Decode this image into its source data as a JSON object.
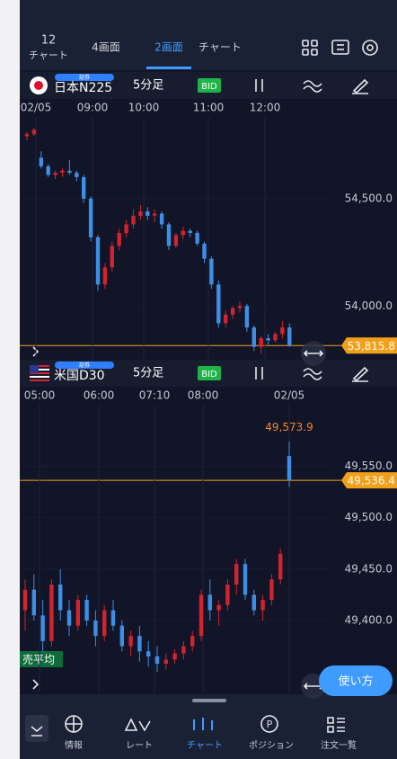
{
  "top_tabs": {
    "left_number": "12",
    "left_label": "チャート",
    "tabs": [
      "4画面",
      "2画面",
      "チャート"
    ]
  },
  "charts": [
    {
      "badge": "証券",
      "symbol": "日本N225",
      "timeframe": "5分足",
      "price_type": "BID",
      "time_labels": [
        "02/05",
        "09:00",
        "10:00",
        "11:00",
        "12:00"
      ],
      "ylim": [
        53750,
        54880
      ],
      "price_ticks": [
        {
          "value": 54500,
          "label": "54,500.0"
        },
        {
          "value": 54000,
          "label": "54,000.0"
        }
      ],
      "current_price": {
        "value": 53815.8,
        "label": "53,815.8"
      },
      "candles": [
        [
          54790,
          54810,
          54770,
          54800
        ],
        [
          54800,
          54830,
          54790,
          54820
        ],
        [
          54690,
          54720,
          54640,
          54650
        ],
        [
          54650,
          54660,
          54600,
          54610
        ],
        [
          54610,
          54630,
          54590,
          54620
        ],
        [
          54620,
          54640,
          54600,
          54630
        ],
        [
          54630,
          54680,
          54610,
          54620
        ],
        [
          54620,
          54630,
          54580,
          54600
        ],
        [
          54600,
          54610,
          54480,
          54500
        ],
        [
          54500,
          54510,
          54300,
          54320
        ],
        [
          54320,
          54330,
          54070,
          54100
        ],
        [
          54100,
          54200,
          54080,
          54180
        ],
        [
          54180,
          54300,
          54160,
          54280
        ],
        [
          54280,
          54360,
          54260,
          54340
        ],
        [
          54340,
          54400,
          54320,
          54380
        ],
        [
          54380,
          54450,
          54360,
          54420
        ],
        [
          54420,
          54470,
          54400,
          54440
        ],
        [
          54440,
          54460,
          54400,
          54420
        ],
        [
          54420,
          54450,
          54390,
          54430
        ],
        [
          54430,
          54440,
          54360,
          54380
        ],
        [
          54380,
          54390,
          54260,
          54280
        ],
        [
          54280,
          54340,
          54270,
          54330
        ],
        [
          54330,
          54370,
          54310,
          54350
        ],
        [
          54350,
          54360,
          54320,
          54340
        ],
        [
          54340,
          54350,
          54280,
          54290
        ],
        [
          54290,
          54300,
          54200,
          54220
        ],
        [
          54220,
          54230,
          54080,
          54100
        ],
        [
          54100,
          54120,
          53900,
          53920
        ],
        [
          53920,
          53980,
          53900,
          53960
        ],
        [
          53960,
          54000,
          53940,
          53990
        ],
        [
          53990,
          54020,
          53970,
          54000
        ],
        [
          54000,
          54010,
          53880,
          53900
        ],
        [
          53900,
          53910,
          53790,
          53810
        ],
        [
          53810,
          53860,
          53780,
          53850
        ],
        [
          53850,
          53870,
          53820,
          53840
        ],
        [
          53840,
          53880,
          53830,
          53870
        ],
        [
          53870,
          53930,
          53850,
          53900
        ],
        [
          53900,
          53920,
          53810,
          53815.8
        ]
      ]
    },
    {
      "badge": "証券",
      "symbol": "米国D30",
      "timeframe": "5分足",
      "price_type": "BID",
      "time_labels": [
        "05:00",
        "06:00",
        "07:10",
        "08:00",
        "02/05"
      ],
      "ylim": [
        49330,
        49610
      ],
      "price_ticks": [
        {
          "value": 49550,
          "label": "49,550.0"
        },
        {
          "value": 49500,
          "label": "49,500.0"
        },
        {
          "value": 49450,
          "label": "49,450.0"
        },
        {
          "value": 49400,
          "label": "49,400.0"
        }
      ],
      "current_price": {
        "value": 49536.4,
        "label": "49,536.4"
      },
      "high_annotation": {
        "value": 49573.9,
        "label": "49,573.9"
      },
      "candles": [
        [
          49410,
          49440,
          49390,
          49430
        ],
        [
          49430,
          49445,
          49400,
          49405
        ],
        [
          49405,
          49420,
          49370,
          49380
        ],
        [
          49380,
          49440,
          49375,
          49435
        ],
        [
          49435,
          49450,
          49400,
          49410
        ],
        [
          49410,
          49420,
          49385,
          49395
        ],
        [
          49395,
          49425,
          49390,
          49420
        ],
        [
          49420,
          49425,
          49395,
          49400
        ],
        [
          49400,
          49410,
          49375,
          49385
        ],
        [
          49385,
          49415,
          49380,
          49410
        ],
        [
          49410,
          49420,
          49390,
          49395
        ],
        [
          49395,
          49400,
          49370,
          49375
        ],
        [
          49375,
          49390,
          49365,
          49385
        ],
        [
          49385,
          49395,
          49360,
          49370
        ],
        [
          49370,
          49380,
          49355,
          49365
        ],
        [
          49365,
          49375,
          49350,
          49358
        ],
        [
          49358,
          49368,
          49352,
          49362
        ],
        [
          49362,
          49372,
          49358,
          49368
        ],
        [
          49368,
          49380,
          49362,
          49375
        ],
        [
          49375,
          49390,
          49370,
          49385
        ],
        [
          49385,
          49430,
          49380,
          49425
        ],
        [
          49425,
          49440,
          49400,
          49410
        ],
        [
          49410,
          49420,
          49395,
          49415
        ],
        [
          49415,
          49440,
          49410,
          49435
        ],
        [
          49435,
          49460,
          49425,
          49455
        ],
        [
          49455,
          49460,
          49420,
          49425
        ],
        [
          49425,
          49430,
          49405,
          49410
        ],
        [
          49410,
          49425,
          49400,
          49420
        ],
        [
          49420,
          49445,
          49415,
          49440
        ],
        [
          49440,
          49470,
          49435,
          49465
        ],
        [
          49560,
          49573.9,
          49530,
          49536.4
        ]
      ]
    }
  ],
  "sell_average_label": "売平均",
  "help_button": "使い方",
  "bottom_nav": [
    "情報",
    "レート",
    "チャート",
    "ポジション",
    "注文一覧"
  ]
}
